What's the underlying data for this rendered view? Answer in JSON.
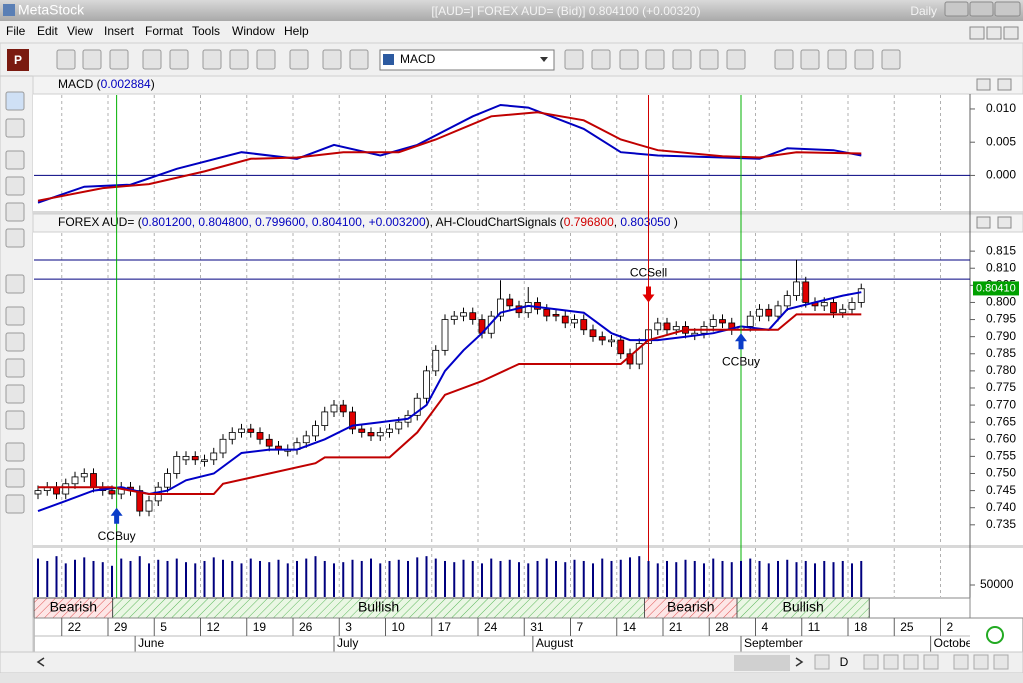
{
  "window": {
    "app": "MetaStock",
    "title": "[[AUD=] FOREX AUD= (Bid)]   0.804100 (+0.00320)",
    "period": "Daily"
  },
  "menu": [
    "File",
    "Edit",
    "View",
    "Insert",
    "Format",
    "Tools",
    "Window",
    "Help"
  ],
  "toolbar": {
    "profile": "P",
    "indicator": "MACD"
  },
  "macd_panel": {
    "type": "line",
    "header": [
      {
        "text": "MACD (",
        "color": "#000000"
      },
      {
        "text": "0.002884",
        "color": "#0000c0"
      },
      {
        "text": ")",
        "color": "#000000"
      }
    ],
    "ylim": [
      -0.0052,
      0.0121
    ],
    "yticks": [
      {
        "value": 0.01,
        "label": "0.010"
      },
      0.005,
      {
        "value": 0,
        "label": "0.000"
      }
    ],
    "series": [
      {
        "color": "#0000c0",
        "x": [
          0,
          5,
          10,
          15,
          22,
          28,
          32,
          37,
          41,
          47,
          50,
          53,
          59,
          63,
          67,
          74,
          78,
          81,
          86,
          89
        ],
        "values": [
          -0.0041,
          -0.0017,
          -0.0014,
          0.001,
          0.0035,
          0.0025,
          0.0046,
          0.003,
          0.0046,
          0.0089,
          0.0106,
          0.0102,
          0.007,
          0.0035,
          0.003,
          0.0027,
          0.0025,
          0.0041,
          0.0038,
          0.003
        ]
      },
      {
        "color": "#c00000",
        "x": [
          0,
          7,
          12,
          18,
          23,
          28,
          33,
          39,
          43,
          49,
          54,
          59,
          63,
          67,
          74,
          78,
          82,
          89
        ],
        "values": [
          -0.0038,
          -0.0019,
          -0.0013,
          0.0006,
          0.0025,
          0.0027,
          0.0035,
          0.0035,
          0.0054,
          0.0089,
          0.0095,
          0.0083,
          0.0054,
          0.0038,
          0.0029,
          0.0027,
          0.0035,
          0.0033
        ]
      }
    ]
  },
  "price_panel": {
    "type": "candlestick",
    "header": [
      {
        "text": "FOREX AUD= (",
        "color": "#000000"
      },
      {
        "text": "0.801200, 0.804800, 0.799600, 0.804100, +0.003200",
        "color": "#0000c0"
      },
      {
        "text": "), AH-CloudChartSignals (",
        "color": "#000000"
      },
      {
        "text": "0.796800",
        "color": "#d00000"
      },
      {
        "text": ", ",
        "color": "#000000"
      },
      {
        "text": "0.803050",
        "color": "#0000c0"
      },
      {
        "text": " )",
        "color": "#000000"
      }
    ],
    "ylim": [
      0.7291,
      0.8203
    ],
    "yticks": [
      0.815,
      {
        "value": 0.81,
        "label": "0.810"
      },
      0.805,
      {
        "value": 0.8,
        "label": "0.800"
      },
      0.795,
      {
        "value": 0.79,
        "label": "0.790"
      },
      0.785,
      {
        "value": 0.78,
        "label": "0.780"
      },
      0.775,
      {
        "value": 0.77,
        "label": "0.770"
      },
      0.765,
      {
        "value": 0.76,
        "label": "0.760"
      },
      0.755,
      {
        "value": 0.75,
        "label": "0.750"
      },
      0.745,
      {
        "value": 0.74,
        "label": "0.740"
      },
      0.735
    ],
    "up_color": "#ffffff",
    "down_color": "#e00000",
    "candles": [
      [
        0.744,
        0.7465,
        0.7425,
        0.745
      ],
      [
        0.745,
        0.7475,
        0.7435,
        0.746
      ],
      [
        0.746,
        0.7475,
        0.7425,
        0.744
      ],
      [
        0.744,
        0.7485,
        0.7425,
        0.747
      ],
      [
        0.747,
        0.7505,
        0.7455,
        0.749
      ],
      [
        0.749,
        0.7515,
        0.7475,
        0.75
      ],
      [
        0.75,
        0.7515,
        0.7445,
        0.746
      ],
      [
        0.746,
        0.7475,
        0.7435,
        0.745
      ],
      [
        0.745,
        0.7465,
        0.7425,
        0.744
      ],
      [
        0.744,
        0.7475,
        0.7425,
        0.746
      ],
      [
        0.746,
        0.7475,
        0.7435,
        0.745
      ],
      [
        0.745,
        0.7465,
        0.7375,
        0.739
      ],
      [
        0.739,
        0.7435,
        0.7375,
        0.742
      ],
      [
        0.742,
        0.7475,
        0.7405,
        0.746
      ],
      [
        0.746,
        0.7515,
        0.7445,
        0.75
      ],
      [
        0.75,
        0.7565,
        0.7485,
        0.755
      ],
      [
        0.754,
        0.7565,
        0.7525,
        0.755
      ],
      [
        0.755,
        0.7565,
        0.7525,
        0.754
      ],
      [
        0.7535,
        0.7555,
        0.752,
        0.754
      ],
      [
        0.754,
        0.7575,
        0.7525,
        0.756
      ],
      [
        0.756,
        0.7615,
        0.7545,
        0.76
      ],
      [
        0.76,
        0.7635,
        0.7585,
        0.762
      ],
      [
        0.762,
        0.7645,
        0.7605,
        0.763
      ],
      [
        0.763,
        0.7645,
        0.7605,
        0.762
      ],
      [
        0.762,
        0.7635,
        0.7585,
        0.76
      ],
      [
        0.76,
        0.7615,
        0.7565,
        0.758
      ],
      [
        0.758,
        0.7595,
        0.7555,
        0.757
      ],
      [
        0.7565,
        0.7585,
        0.755,
        0.757
      ],
      [
        0.757,
        0.7605,
        0.7555,
        0.759
      ],
      [
        0.759,
        0.7625,
        0.7575,
        0.761
      ],
      [
        0.761,
        0.7655,
        0.7595,
        0.764
      ],
      [
        0.764,
        0.7695,
        0.7625,
        0.768
      ],
      [
        0.768,
        0.7715,
        0.7665,
        0.77
      ],
      [
        0.77,
        0.7715,
        0.7665,
        0.768
      ],
      [
        0.768,
        0.7695,
        0.7615,
        0.763
      ],
      [
        0.763,
        0.7645,
        0.7605,
        0.762
      ],
      [
        0.762,
        0.7635,
        0.7595,
        0.761
      ],
      [
        0.761,
        0.7635,
        0.7595,
        0.762
      ],
      [
        0.762,
        0.7645,
        0.7605,
        0.763
      ],
      [
        0.763,
        0.7665,
        0.7615,
        0.765
      ],
      [
        0.765,
        0.7685,
        0.7635,
        0.767
      ],
      [
        0.767,
        0.7735,
        0.7655,
        0.772
      ],
      [
        0.772,
        0.7815,
        0.7705,
        0.78
      ],
      [
        0.78,
        0.7875,
        0.7785,
        0.786
      ],
      [
        0.786,
        0.7965,
        0.7845,
        0.795
      ],
      [
        0.795,
        0.7975,
        0.7935,
        0.796
      ],
      [
        0.796,
        0.7985,
        0.7945,
        0.797
      ],
      [
        0.797,
        0.7985,
        0.7935,
        0.795
      ],
      [
        0.795,
        0.7965,
        0.7895,
        0.791
      ],
      [
        0.791,
        0.7975,
        0.7895,
        0.796
      ],
      [
        0.796,
        0.8065,
        0.7945,
        0.801
      ],
      [
        0.801,
        0.8025,
        0.7975,
        0.799
      ],
      [
        0.799,
        0.8005,
        0.7955,
        0.797
      ],
      [
        0.797,
        0.8045,
        0.7955,
        0.8
      ],
      [
        0.8,
        0.8015,
        0.7965,
        0.798
      ],
      [
        0.798,
        0.7995,
        0.7945,
        0.796
      ],
      [
        0.7965,
        0.798,
        0.7945,
        0.796
      ],
      [
        0.796,
        0.7975,
        0.7925,
        0.794
      ],
      [
        0.794,
        0.7965,
        0.7925,
        0.795
      ],
      [
        0.795,
        0.7965,
        0.7905,
        0.792
      ],
      [
        0.792,
        0.7935,
        0.7885,
        0.79
      ],
      [
        0.79,
        0.7915,
        0.7875,
        0.789
      ],
      [
        0.7885,
        0.7905,
        0.787,
        0.789
      ],
      [
        0.789,
        0.7905,
        0.7835,
        0.785
      ],
      [
        0.785,
        0.7865,
        0.7805,
        0.782
      ],
      [
        0.782,
        0.7895,
        0.7805,
        0.788
      ],
      [
        0.788,
        0.7935,
        0.7865,
        0.792
      ],
      [
        0.792,
        0.7955,
        0.7905,
        0.794
      ],
      [
        0.794,
        0.7955,
        0.7905,
        0.792
      ],
      [
        0.792,
        0.7945,
        0.7905,
        0.793
      ],
      [
        0.793,
        0.7945,
        0.7895,
        0.791
      ],
      [
        0.7905,
        0.7925,
        0.789,
        0.791
      ],
      [
        0.791,
        0.7945,
        0.7895,
        0.793
      ],
      [
        0.793,
        0.7965,
        0.7915,
        0.795
      ],
      [
        0.795,
        0.7965,
        0.7925,
        0.794
      ],
      [
        0.794,
        0.7955,
        0.7905,
        0.792
      ],
      [
        0.792,
        0.7945,
        0.7905,
        0.793
      ],
      [
        0.793,
        0.7975,
        0.7915,
        0.796
      ],
      [
        0.796,
        0.7995,
        0.7945,
        0.798
      ],
      [
        0.798,
        0.7995,
        0.7945,
        0.796
      ],
      [
        0.796,
        0.8005,
        0.7945,
        0.799
      ],
      [
        0.799,
        0.8035,
        0.7975,
        0.802
      ],
      [
        0.802,
        0.8125,
        0.8005,
        0.806
      ],
      [
        0.806,
        0.8075,
        0.7985,
        0.8
      ],
      [
        0.8,
        0.8015,
        0.7975,
        0.799
      ],
      [
        0.799,
        0.8015,
        0.7975,
        0.8
      ],
      [
        0.8,
        0.8015,
        0.7955,
        0.797
      ],
      [
        0.797,
        0.7995,
        0.7955,
        0.798
      ],
      [
        0.798,
        0.8015,
        0.7965,
        0.8
      ],
      [
        0.8,
        0.8055,
        0.7985,
        0.804
      ]
    ],
    "series": [
      {
        "color": "#0000c8",
        "x": [
          0,
          3,
          6,
          9,
          12,
          14,
          16,
          19,
          22,
          25,
          28,
          31,
          34,
          37,
          40,
          42,
          44,
          46,
          48,
          50,
          53,
          56,
          59,
          62,
          64,
          67,
          70,
          73,
          76,
          79,
          81,
          84,
          87,
          89
        ],
        "values": [
          0.739,
          0.742,
          0.745,
          0.746,
          0.744,
          0.745,
          0.748,
          0.75,
          0.756,
          0.757,
          0.757,
          0.76,
          0.764,
          0.765,
          0.766,
          0.77,
          0.78,
          0.786,
          0.791,
          0.797,
          0.799,
          0.798,
          0.797,
          0.791,
          0.789,
          0.789,
          0.79,
          0.791,
          0.793,
          0.792,
          0.798,
          0.8,
          0.802,
          0.803
        ]
      },
      {
        "color": "#c00000",
        "x": [
          0,
          8,
          12,
          19,
          20,
          25,
          30,
          31,
          38,
          41,
          44,
          48,
          52,
          63,
          66,
          70,
          80,
          82,
          89
        ],
        "values": [
          0.746,
          0.746,
          0.744,
          0.744,
          0.747,
          0.75,
          0.753,
          0.7547,
          0.7547,
          0.762,
          0.773,
          0.777,
          0.782,
          0.782,
          0.789,
          0.792,
          0.792,
          0.7965,
          0.7965
        ]
      }
    ],
    "levels": [
      0.8124,
      0.8068
    ],
    "last_value": {
      "value": 0.8041,
      "label": "0.80410"
    },
    "signals": [
      {
        "label": "CCBuy",
        "index": 8.5,
        "price": 0.74,
        "direction": "up"
      },
      {
        "label": "CCSell",
        "index": 66,
        "price": 0.8,
        "direction": "down"
      },
      {
        "label": "CCBuy",
        "index": 76,
        "price": 0.791,
        "direction": "up"
      }
    ]
  },
  "volume_panel": {
    "type": "bar",
    "color": "#00007f",
    "ylim": [
      0,
      204000
    ],
    "yticks": [
      50000
    ],
    "values": [
      160000,
      150000,
      170000,
      140000,
      155000,
      165000,
      150000,
      145000,
      130000,
      160000,
      150000,
      170000,
      140000,
      155000,
      150000,
      160000,
      145000,
      140000,
      150000,
      165000,
      155000,
      150000,
      140000,
      160000,
      150000,
      145000,
      155000,
      140000,
      150000,
      160000,
      170000,
      150000,
      140000,
      145000,
      155000,
      150000,
      160000,
      140000,
      150000,
      155000,
      150000,
      165000,
      170000,
      160000,
      150000,
      145000,
      155000,
      150000,
      140000,
      160000,
      150000,
      155000,
      145000,
      140000,
      150000,
      160000,
      150000,
      145000,
      155000,
      150000,
      140000,
      160000,
      150000,
      155000,
      165000,
      170000,
      150000,
      140000,
      150000,
      145000,
      155000,
      150000,
      140000,
      160000,
      150000,
      145000,
      150000,
      160000,
      150000,
      140000,
      150000,
      155000,
      145000,
      150000,
      140000,
      150000,
      145000,
      150000,
      140000,
      150000
    ]
  },
  "ribbons": [
    {
      "label": "Bearish",
      "start": 0,
      "end": 8.5,
      "state": "bear"
    },
    {
      "label": "Bullish",
      "start": 8.5,
      "end": 66,
      "state": "bull"
    },
    {
      "label": "Bearish",
      "start": 66,
      "end": 76,
      "state": "bear"
    },
    {
      "label": "Bullish",
      "start": 76,
      "end": 90.3,
      "state": "bull"
    }
  ],
  "date_axis": {
    "days": [
      "22",
      "29",
      "5",
      "12",
      "19",
      "26",
      "3",
      "10",
      "17",
      "24",
      "31",
      "7",
      "14",
      "21",
      "28",
      "4",
      "11",
      "18",
      "25",
      "2"
    ],
    "months": [
      {
        "label": "June",
        "index": 10.5
      },
      {
        "label": "July",
        "index": 32
      },
      {
        "label": "August",
        "index": 53.5
      },
      {
        "label": "September",
        "index": 76
      },
      {
        "label": "October",
        "index": 96.5
      }
    ]
  },
  "bottom_toolbar": {
    "period_button": "D"
  }
}
